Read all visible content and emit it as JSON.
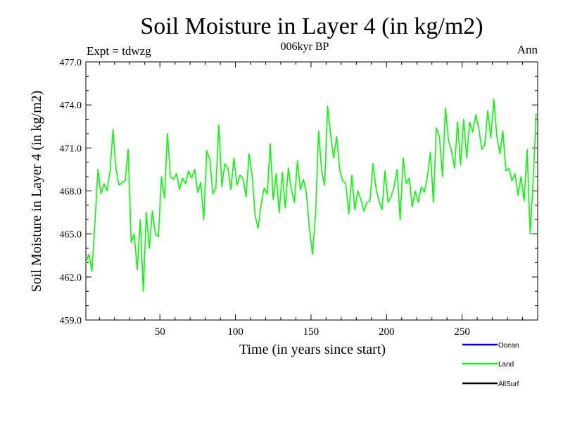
{
  "header": {
    "title": "Soil Moisture in Layer 4 (in kg/m2)",
    "subtitle": "006kyr BP",
    "left_note": "Expt = tdwzg",
    "right_note": "Ann"
  },
  "chart_data": {
    "type": "line",
    "title": "Soil Moisture in Layer 4 (in kg/m2)",
    "subtitle": "006kyr BP",
    "xlabel": "Time (in years since start)",
    "ylabel": "Soil Moisture in Layer 4 (in kg/m2)",
    "xlim": [
      1,
      300
    ],
    "ylim": [
      459,
      477
    ],
    "xticks": [
      50,
      100,
      150,
      200,
      250
    ],
    "xtick_labels": [
      "50",
      "100",
      "150",
      "200",
      "250"
    ],
    "yticks": [
      459,
      462,
      465,
      468,
      471,
      474,
      477
    ],
    "ytick_labels": [
      "459.0",
      "462.0",
      "465.0",
      "468.0",
      "471.0",
      "474.0",
      "477.0"
    ],
    "grid": false,
    "legend": {
      "placement": "bottom-right",
      "entries": [
        "Ocean",
        "Land",
        "AllSurf"
      ]
    },
    "colors": {
      "Ocean": "#0000cc",
      "Land": "#00ff00",
      "AllSurf": "#000000"
    },
    "series": [
      {
        "name": "Land",
        "color": "#00ff00",
        "x": [
          1,
          3,
          5,
          7,
          9,
          11,
          13,
          15,
          17,
          19,
          21,
          23,
          25,
          27,
          29,
          31,
          33,
          35,
          37,
          39,
          41,
          43,
          45,
          47,
          49,
          51,
          53,
          55,
          57,
          59,
          61,
          63,
          65,
          67,
          69,
          71,
          73,
          75,
          77,
          79,
          81,
          83,
          85,
          87,
          89,
          91,
          93,
          95,
          97,
          99,
          101,
          103,
          105,
          107,
          109,
          111,
          113,
          115,
          117,
          119,
          121,
          123,
          125,
          127,
          129,
          131,
          133,
          135,
          137,
          139,
          141,
          143,
          145,
          147,
          149,
          151,
          153,
          155,
          157,
          159,
          161,
          163,
          165,
          167,
          169,
          171,
          173,
          175,
          177,
          179,
          181,
          183,
          185,
          187,
          189,
          191,
          193,
          195,
          197,
          199,
          201,
          203,
          205,
          207,
          209,
          211,
          213,
          215,
          217,
          219,
          221,
          223,
          225,
          227,
          229,
          231,
          233,
          235,
          237,
          239,
          241,
          243,
          245,
          247,
          249,
          251,
          253,
          255,
          257,
          259,
          261,
          263,
          265,
          267,
          269,
          271,
          273,
          275,
          277,
          279,
          281,
          283,
          285,
          287,
          289,
          291,
          293,
          295,
          297,
          299
        ],
        "values": [
          463.0,
          463.6,
          462.4,
          465.8,
          469.5,
          467.8,
          468.5,
          468.0,
          469.4,
          472.3,
          469.5,
          468.4,
          468.6,
          468.7,
          470.9,
          464.4,
          465.0,
          462.5,
          466.0,
          461.0,
          466.5,
          464.0,
          466.6,
          465.0,
          464.8,
          469.0,
          467.5,
          472.0,
          469.0,
          468.8,
          469.2,
          468.1,
          468.9,
          468.5,
          469.4,
          468.9,
          469.5,
          467.9,
          468.6,
          466.0,
          470.8,
          470.2,
          467.8,
          468.2,
          472.6,
          468.3,
          469.9,
          469.6,
          468.1,
          470.3,
          468.4,
          469.1,
          468.9,
          467.6,
          470.6,
          469.1,
          466.3,
          465.4,
          467.1,
          468.2,
          467.8,
          471.3,
          467.4,
          469.2,
          466.5,
          469.3,
          466.8,
          469.6,
          468.1,
          467.2,
          470.1,
          468.1,
          468.8,
          467.8,
          465.3,
          463.6,
          466.4,
          472.2,
          469.4,
          468.4,
          473.9,
          471.9,
          470.3,
          471.8,
          469.5,
          468.7,
          468.5,
          466.4,
          469.1,
          466.7,
          468.0,
          467.4,
          466.6,
          467.2,
          467.3,
          469.9,
          468.2,
          467.3,
          466.7,
          469.4,
          467.2,
          467.6,
          468.3,
          469.5,
          466.0,
          470.3,
          468.5,
          468.9,
          466.9,
          468.0,
          467.2,
          468.3,
          467.9,
          469.0,
          470.7,
          467.2,
          472.4,
          471.8,
          469.0,
          473.8,
          471.5,
          470.8,
          469.6,
          472.8,
          469.8,
          473.0,
          470.3,
          472.8,
          472.1,
          473.3,
          472.4,
          470.9,
          471.2,
          473.6,
          471.7,
          474.4,
          471.8,
          470.6,
          472.2,
          469.4,
          469.6,
          468.7,
          469.2,
          467.7,
          469.0,
          467.3,
          470.9,
          465.0,
          468.7,
          473.4
        ]
      }
    ]
  }
}
